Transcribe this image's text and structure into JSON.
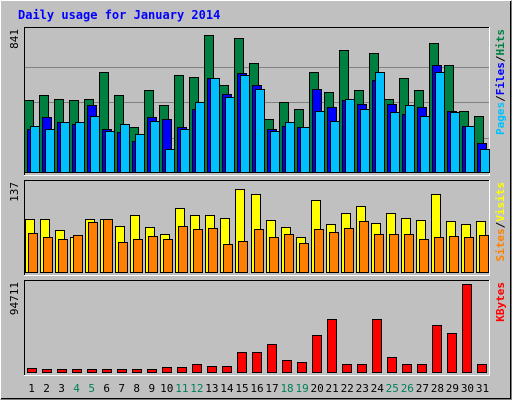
{
  "chart_data": {
    "type": "bar",
    "title": "Daily usage for January 2014",
    "categories": [
      "1",
      "2",
      "3",
      "4",
      "5",
      "6",
      "7",
      "8",
      "9",
      "10",
      "11",
      "12",
      "13",
      "14",
      "15",
      "16",
      "17",
      "18",
      "19",
      "20",
      "21",
      "22",
      "23",
      "24",
      "25",
      "26",
      "27",
      "28",
      "29",
      "30",
      "31"
    ],
    "weekend_days": [
      4,
      5,
      11,
      12,
      18,
      19,
      25,
      26
    ],
    "colors": {
      "background": "#c0c0c0",
      "title": "#0000ff",
      "hits": "#008040",
      "files": "#0000ff",
      "pages": "#00c0ff",
      "visits": "#ffff00",
      "sites": "#ff8000",
      "kbytes": "#ff0000",
      "weekday_label": "#000000",
      "weekend_label": "#00805c"
    },
    "panels": [
      {
        "id": "requests",
        "max_label": "841",
        "ymax": 841,
        "labels": [
          {
            "text": "Pages",
            "color": "#00c0ff"
          },
          {
            "text": "/",
            "color": "#000000"
          },
          {
            "text": "Files",
            "color": "#0000ff"
          },
          {
            "text": "/",
            "color": "#000000"
          },
          {
            "text": "Hits",
            "color": "#008040"
          }
        ],
        "series": [
          {
            "name": "Hits",
            "color": "#008040",
            "values": [
              430,
              460,
              440,
              430,
              440,
              600,
              460,
              270,
              490,
              400,
              580,
              570,
              820,
              520,
              800,
              650,
              320,
              420,
              380,
              600,
              480,
              730,
              490,
              710,
              440,
              560,
              490,
              770,
              640,
              370,
              340
            ]
          },
          {
            "name": "Files",
            "color": "#0000ff",
            "values": [
              260,
              330,
              300,
              290,
              400,
              260,
              240,
              190,
              330,
              320,
              270,
              380,
              560,
              470,
              590,
              520,
              260,
              280,
              270,
              500,
              390,
              430,
              410,
              550,
              410,
              350,
              390,
              640,
              370,
              280,
              180
            ]
          },
          {
            "name": "Pages",
            "color": "#00c0ff",
            "values": [
              280,
              260,
              300,
              300,
              340,
              250,
              290,
              230,
              310,
              140,
              260,
              420,
              560,
              450,
              580,
              500,
              250,
              300,
              270,
              370,
              310,
              440,
              380,
              600,
              360,
              400,
              340,
              600,
              360,
              280,
              140
            ]
          }
        ]
      },
      {
        "id": "visitors",
        "max_label": "137",
        "ymax": 137,
        "labels": [
          {
            "text": "Sites",
            "color": "#ff8000"
          },
          {
            "text": "/",
            "color": "#000000"
          },
          {
            "text": "Visits",
            "color": "#ffff00"
          }
        ],
        "series": [
          {
            "name": "Visits",
            "color": "#ffff00",
            "values": [
              83,
              83,
              66,
              55,
              83,
              83,
              72,
              90,
              71,
              60,
              100,
              90,
              90,
              85,
              130,
              122,
              82,
              71,
              55,
              112,
              75,
              93,
              103,
              77,
              93,
              85,
              82,
              122,
              80,
              75,
              80
            ]
          },
          {
            "name": "Sites",
            "color": "#ff8000",
            "values": [
              62,
              55,
              53,
              58,
              78,
              83,
              47,
              53,
              57,
              53,
              72,
              68,
              70,
              45,
              50,
              68,
              55,
              60,
              46,
              68,
              63,
              70,
              80,
              60,
              60,
              60,
              52,
              56,
              57,
              55,
              58
            ]
          }
        ]
      },
      {
        "id": "kbytes",
        "max_label": "94711",
        "ymax": 94711,
        "labels": [
          {
            "text": "KBytes",
            "color": "#ff0000"
          }
        ],
        "series": [
          {
            "name": "KBytes",
            "color": "#ff0000",
            "values": [
              5200,
              4500,
              4000,
              4000,
              4500,
              4000,
              4500,
              4500,
              4000,
              6500,
              6000,
              10000,
              7000,
              7000,
              22000,
              22000,
              31000,
              14000,
              12000,
              40000,
              57000,
              10000,
              10000,
              57000,
              17000,
              10000,
              10000,
              51000,
              43000,
              94711,
              10000
            ]
          }
        ]
      }
    ]
  }
}
